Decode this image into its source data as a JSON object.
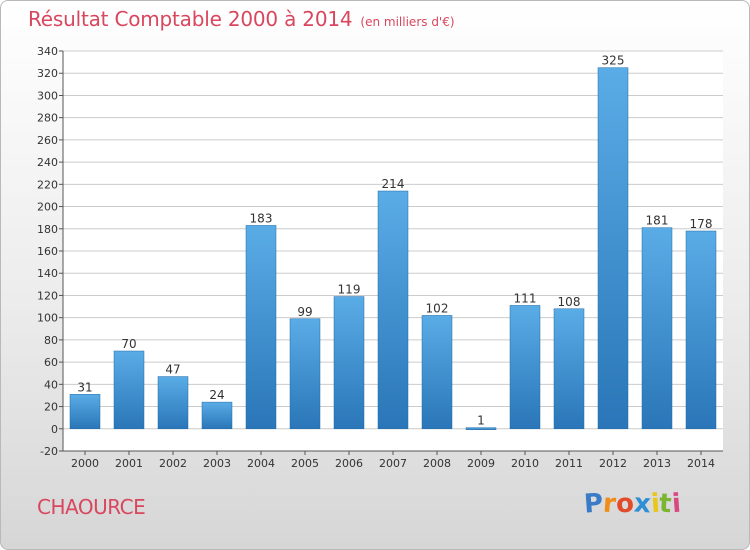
{
  "title": "Résultat Comptable 2000 à 2014",
  "subtitle": "(en milliers d'€)",
  "city": "CHAOURCE",
  "logo": {
    "letters": [
      "P",
      "r",
      "o",
      "x",
      "i",
      "t",
      "i"
    ],
    "colors": [
      "#3a7bc8",
      "#f08c1a",
      "#e14b2a",
      "#2e8fd4",
      "#e8c61a",
      "#7cb531",
      "#d94a82"
    ]
  },
  "colors": {
    "bar_top": "#5aace6",
    "bar_bottom": "#2a76b8",
    "title": "#d9475e",
    "grid": "#cccccc"
  },
  "chart_data": {
    "type": "bar",
    "categories": [
      "2000",
      "2001",
      "2002",
      "2003",
      "2004",
      "2005",
      "2006",
      "2007",
      "2008",
      "2009",
      "2010",
      "2011",
      "2012",
      "2013",
      "2014"
    ],
    "values": [
      31,
      70,
      47,
      24,
      183,
      99,
      119,
      214,
      102,
      1,
      111,
      108,
      325,
      181,
      178
    ],
    "ylim": [
      -20,
      340
    ],
    "yticks": [
      -20,
      0,
      20,
      40,
      60,
      80,
      100,
      120,
      140,
      160,
      180,
      200,
      220,
      240,
      260,
      280,
      300,
      320,
      340
    ],
    "grid": true,
    "xlabel": "",
    "ylabel": ""
  }
}
